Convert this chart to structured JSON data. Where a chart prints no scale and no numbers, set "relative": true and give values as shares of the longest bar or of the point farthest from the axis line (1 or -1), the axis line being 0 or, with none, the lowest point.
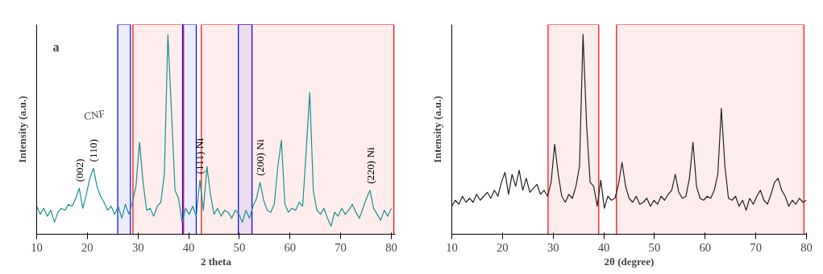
{
  "chart_data": [
    {
      "type": "line",
      "relative": true,
      "xlabel": "2 theta",
      "ylabel": "Intensity (a.u.)",
      "xlim": [
        10,
        80.8
      ],
      "xticks": [
        10,
        20,
        30,
        40,
        50,
        60,
        70,
        80
      ],
      "grid": false,
      "tick_labels": "x",
      "annotations": [
        "a",
        "CNF",
        {
          "text": "(002)",
          "x": 18.4,
          "y": 0.23
        },
        {
          "text": "(110)",
          "x": 21.2,
          "y": 0.33
        },
        {
          "text": "(111) Ni",
          "x": 42.2,
          "y": 0.27
        },
        {
          "text": "(200) Ni",
          "x": 54.1,
          "y": 0.26
        },
        {
          "text": "(220) Ni",
          "x": 75.8,
          "y": 0.22
        }
      ],
      "bands": [
        {
          "axis": "x",
          "from": 29,
          "to": 39,
          "color": "#ff0000"
        },
        {
          "axis": "x",
          "from": 42.5,
          "to": 80.5,
          "color": "#ff0000"
        },
        {
          "axis": "x",
          "from": 26,
          "to": 28.5,
          "color": "#0000ff"
        },
        {
          "axis": "x",
          "from": 38.8,
          "to": 41.5,
          "color": "#0000ff"
        },
        {
          "axis": "x",
          "from": 49.8,
          "to": 52.5,
          "color": "#0000ff"
        }
      ],
      "x": [
        10,
        10.7,
        11.4,
        12.1,
        12.8,
        13.5,
        14.2,
        14.9,
        15.6,
        16.3,
        17,
        17.7,
        18.4,
        19.1,
        19.8,
        20.5,
        21.2,
        21.9,
        22.6,
        23.3,
        24,
        24.7,
        25.4,
        26.1,
        26.8,
        27.5,
        28.2,
        28.9,
        29.6,
        30.3,
        31,
        31.7,
        32.4,
        33.1,
        33.8,
        34.5,
        35.2,
        35.9,
        36.6,
        37.3,
        38,
        38.7,
        39.4,
        40.1,
        40.8,
        41.5,
        42.2,
        42.9,
        43.6,
        44.3,
        45,
        45.7,
        46.4,
        47.1,
        47.8,
        48.5,
        49.2,
        49.9,
        50.6,
        51.3,
        52,
        52.7,
        53.4,
        54.1,
        54.8,
        55.5,
        56.2,
        56.9,
        57.6,
        58.3,
        59,
        59.7,
        60.4,
        61.1,
        61.8,
        62.5,
        63.2,
        63.9,
        64.6,
        65.3,
        66,
        66.7,
        67.4,
        68.1,
        68.8,
        69.5,
        70.2,
        70.9,
        71.6,
        72.3,
        73,
        73.7,
        74.4,
        75.1,
        75.8,
        76.5,
        77.2,
        77.9,
        78.6,
        79.3,
        80
      ],
      "series": [
        {
          "color": "#1a8f8f",
          "values": [
            0.14,
            0.1,
            0.13,
            0.09,
            0.12,
            0.06,
            0.11,
            0.13,
            0.12,
            0.15,
            0.14,
            0.18,
            0.23,
            0.13,
            0.2,
            0.28,
            0.33,
            0.24,
            0.19,
            0.16,
            0.12,
            0.14,
            0.1,
            0.14,
            0.08,
            0.15,
            0.1,
            0.16,
            0.24,
            0.46,
            0.26,
            0.12,
            0.13,
            0.09,
            0.14,
            0.16,
            0.3,
            1.0,
            0.62,
            0.22,
            0.18,
            0.06,
            0.13,
            0.1,
            0.14,
            0.09,
            0.27,
            0.12,
            0.34,
            0.2,
            0.1,
            0.13,
            0.09,
            0.12,
            0.11,
            0.08,
            0.12,
            0.1,
            0.06,
            0.12,
            0.08,
            0.14,
            0.18,
            0.26,
            0.17,
            0.12,
            0.11,
            0.15,
            0.34,
            0.47,
            0.15,
            0.11,
            0.13,
            0.12,
            0.16,
            0.14,
            0.42,
            0.71,
            0.22,
            0.12,
            0.1,
            0.13,
            0.08,
            0.04,
            0.11,
            0.09,
            0.13,
            0.1,
            0.12,
            0.15,
            0.11,
            0.08,
            0.13,
            0.18,
            0.22,
            0.13,
            0.1,
            0.07,
            0.12,
            0.09,
            0.13
          ]
        }
      ]
    },
    {
      "type": "line",
      "relative": true,
      "xlabel": "2θ (degree)",
      "ylabel": "Intensity (a.u.)",
      "xlim": [
        10,
        80
      ],
      "xticks": [
        10,
        20,
        30,
        40,
        50,
        60,
        70,
        80
      ],
      "grid": false,
      "tick_labels": "x",
      "bands": [
        {
          "axis": "x",
          "from": 29,
          "to": 39,
          "color": "#ff0000"
        },
        {
          "axis": "x",
          "from": 42.5,
          "to": 79.5,
          "color": "#ff0000"
        }
      ],
      "x": [
        10,
        10.7,
        11.4,
        12.1,
        12.8,
        13.5,
        14.2,
        14.9,
        15.6,
        16.3,
        17,
        17.7,
        18.4,
        19.1,
        19.8,
        20.5,
        21.2,
        21.9,
        22.6,
        23.3,
        24,
        24.7,
        25.4,
        26.1,
        26.8,
        27.5,
        28.2,
        28.9,
        29.6,
        30.3,
        31,
        31.7,
        32.4,
        33.1,
        33.8,
        34.5,
        35.2,
        35.9,
        36.6,
        37.3,
        38,
        38.7,
        39.4,
        40.1,
        40.8,
        41.5,
        42.2,
        42.9,
        43.6,
        44.3,
        45,
        45.7,
        46.4,
        47.1,
        47.8,
        48.5,
        49.2,
        49.9,
        50.6,
        51.3,
        52,
        52.7,
        53.4,
        54.1,
        54.8,
        55.5,
        56.2,
        56.9,
        57.6,
        58.3,
        59,
        59.7,
        60.4,
        61.1,
        61.8,
        62.5,
        63.2,
        63.9,
        64.6,
        65.3,
        66,
        66.7,
        67.4,
        68.1,
        68.8,
        69.5,
        70.2,
        70.9,
        71.6,
        72.3,
        73,
        73.7,
        74.4,
        75.1,
        75.8,
        76.5,
        77.2,
        77.9,
        78.6,
        79.3,
        80
      ],
      "series": [
        {
          "color": "#222222",
          "values": [
            0.14,
            0.17,
            0.15,
            0.19,
            0.16,
            0.18,
            0.16,
            0.2,
            0.17,
            0.19,
            0.21,
            0.18,
            0.22,
            0.19,
            0.26,
            0.31,
            0.2,
            0.3,
            0.24,
            0.32,
            0.22,
            0.28,
            0.21,
            0.23,
            0.25,
            0.2,
            0.22,
            0.19,
            0.26,
            0.45,
            0.3,
            0.19,
            0.16,
            0.2,
            0.18,
            0.24,
            0.34,
            1.0,
            0.55,
            0.26,
            0.24,
            0.14,
            0.27,
            0.13,
            0.19,
            0.17,
            0.18,
            0.25,
            0.36,
            0.24,
            0.18,
            0.16,
            0.19,
            0.15,
            0.16,
            0.18,
            0.14,
            0.17,
            0.15,
            0.19,
            0.17,
            0.2,
            0.22,
            0.3,
            0.21,
            0.18,
            0.19,
            0.28,
            0.46,
            0.24,
            0.18,
            0.17,
            0.19,
            0.18,
            0.22,
            0.3,
            0.63,
            0.34,
            0.18,
            0.17,
            0.19,
            0.14,
            0.17,
            0.12,
            0.18,
            0.15,
            0.19,
            0.22,
            0.17,
            0.15,
            0.2,
            0.26,
            0.28,
            0.22,
            0.19,
            0.14,
            0.17,
            0.15,
            0.18,
            0.16,
            0.17
          ]
        }
      ]
    }
  ]
}
